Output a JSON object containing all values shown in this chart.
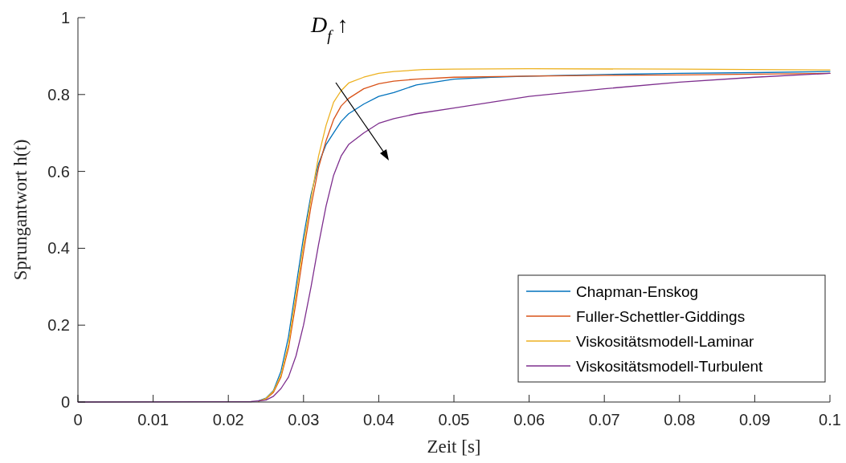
{
  "chart_data": {
    "type": "line",
    "xlabel": "Zeit [s]",
    "ylabel": "Sprungantwort h(t)",
    "annotations": [
      "D$_{f}$ ↑"
    ],
    "xlim": [
      0,
      0.1
    ],
    "ylim": [
      0,
      1
    ],
    "xticks": [
      0,
      0.01,
      0.02,
      0.03,
      0.04,
      0.05,
      0.06,
      0.07,
      0.08,
      0.09,
      0.1
    ],
    "yticks": [
      0,
      0.2,
      0.4,
      0.6,
      0.8,
      1
    ],
    "grid": false,
    "legend": "bottom right",
    "line_style": "solid",
    "marker": "none",
    "series": [
      {
        "name": "Chapman-Enskog",
        "color": "#0072bd",
        "x": [
          0.024,
          0.025,
          0.026,
          0.027,
          0.028,
          0.029,
          0.03,
          0.031,
          0.032,
          0.033,
          0.034,
          0.035,
          0.036,
          0.038,
          0.04,
          0.042,
          0.045,
          0.05,
          0.055,
          0.06,
          0.07,
          0.08,
          0.09,
          0.1
        ],
        "values": [
          0.003,
          0.01,
          0.03,
          0.08,
          0.17,
          0.3,
          0.43,
          0.54,
          0.62,
          0.67,
          0.7,
          0.73,
          0.75,
          0.775,
          0.795,
          0.805,
          0.825,
          0.84,
          0.845,
          0.848,
          0.852,
          0.855,
          0.857,
          0.86
        ]
      },
      {
        "name": "Fuller-Schettler-Giddings",
        "color": "#d95319",
        "x": [
          0.024,
          0.025,
          0.026,
          0.027,
          0.028,
          0.029,
          0.03,
          0.031,
          0.032,
          0.033,
          0.034,
          0.035,
          0.036,
          0.038,
          0.04,
          0.042,
          0.045,
          0.05,
          0.06,
          0.07,
          0.08,
          0.1
        ],
        "values": [
          0.002,
          0.008,
          0.025,
          0.065,
          0.14,
          0.26,
          0.39,
          0.51,
          0.61,
          0.68,
          0.735,
          0.77,
          0.79,
          0.815,
          0.828,
          0.835,
          0.84,
          0.845,
          0.848,
          0.85,
          0.851,
          0.855
        ]
      },
      {
        "name": "Viskositätsmodell-Laminar",
        "color": "#edb120",
        "x": [
          0.024,
          0.025,
          0.026,
          0.027,
          0.028,
          0.029,
          0.03,
          0.031,
          0.032,
          0.033,
          0.034,
          0.035,
          0.036,
          0.038,
          0.04,
          0.042,
          0.046,
          0.05,
          0.06,
          0.08,
          0.1
        ],
        "values": [
          0.002,
          0.009,
          0.028,
          0.07,
          0.15,
          0.28,
          0.41,
          0.53,
          0.64,
          0.72,
          0.78,
          0.81,
          0.83,
          0.845,
          0.855,
          0.86,
          0.865,
          0.866,
          0.867,
          0.866,
          0.864
        ]
      },
      {
        "name": "Viskositätsmodell-Turbulent",
        "color": "#7e2f8e",
        "x": [
          0,
          0.023,
          0.025,
          0.026,
          0.027,
          0.028,
          0.029,
          0.03,
          0.031,
          0.032,
          0.033,
          0.034,
          0.035,
          0.036,
          0.038,
          0.04,
          0.042,
          0.045,
          0.05,
          0.055,
          0.06,
          0.07,
          0.08,
          0.09,
          0.1
        ],
        "values": [
          0,
          0.001,
          0.005,
          0.015,
          0.035,
          0.065,
          0.12,
          0.2,
          0.3,
          0.41,
          0.51,
          0.59,
          0.64,
          0.67,
          0.7,
          0.725,
          0.737,
          0.75,
          0.765,
          0.78,
          0.795,
          0.815,
          0.832,
          0.845,
          0.855
        ]
      }
    ]
  }
}
